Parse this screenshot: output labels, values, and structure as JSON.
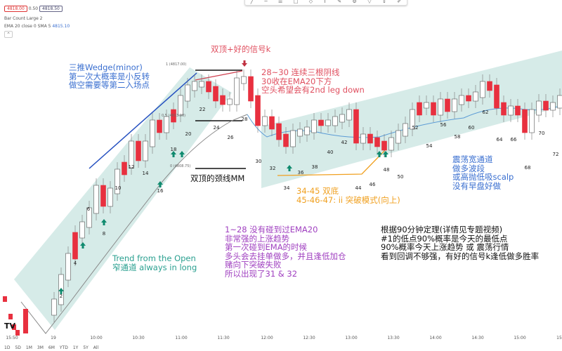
{
  "header": {
    "bid": "4818.00",
    "spread": "0.50",
    "ask": "4818.50",
    "bar_count": "Bar Count Large 2",
    "ema_label": "EMA 20 close 0 SMA 5",
    "ema_value": "4815.10",
    "collapse_icon": "chevron-up-icon"
  },
  "fib_levels": [
    "1 (4817.00)",
    "0.5 (4813.00)",
    "0 (4808.75)"
  ],
  "bar_numbers": [
    "2",
    "4",
    "6",
    "8",
    "10",
    "12",
    "14",
    "16",
    "18",
    "20",
    "22",
    "24",
    "26",
    "28",
    "30",
    "32",
    "34",
    "36",
    "38",
    "40",
    "42",
    "44",
    "46",
    "48",
    "50",
    "52",
    "54",
    "56",
    "58",
    "60",
    "62",
    "64",
    "66",
    "68",
    "70",
    "72"
  ],
  "annotations": {
    "wedge": [
      "三推Wedge(minor)",
      "第一次大概率是小反转",
      "做空需要等第二入场点"
    ],
    "double_top_signal": "双顶+好的信号k",
    "bars_28_30": [
      "28~30 连续三根阴线",
      "30收在EMA20下方",
      "空头希望会有2nd leg down"
    ],
    "neckline": "双顶的颈线MM",
    "double_bottom": [
      "34-45 双底",
      "45-46-47: ii 突破模式(向上)"
    ],
    "range_channel": [
      "震荡宽通道",
      "做多波段",
      "或高抛低吸scalp",
      "没有早盘好做"
    ],
    "trend_open": [
      "Trend from the Open",
      "窄通道 always in long"
    ],
    "bars_1_28": [
      "1~28 没有碰到过EMA20",
      "非常强的上涨趋势",
      "第一次碰到EMA的时候",
      "多头会去挂单做多，并且逢低加仓",
      "赌向下突破失败",
      "所以出现了31 & 32"
    ],
    "ninety_min": [
      "根据90分钟定理(详情见专题视频)",
      "#1的低点90%概率是今天的最低点",
      "90%概率今天上涨趋势 或 震荡行情",
      "看到回调不够强，有好的信号k逢低做多胜率"
    ]
  },
  "time_axis": [
    "15:50",
    "19",
    "10:00",
    "10:30",
    "11:00",
    "11:30",
    "12:00",
    "12:30",
    "13:00",
    "13:30",
    "14:00",
    "14:30",
    "15:00",
    "15"
  ],
  "ranges": [
    "1D",
    "5D",
    "1M",
    "3M",
    "6M",
    "YTD",
    "1Y",
    "5Y",
    "All"
  ],
  "logo": "TV",
  "colors": {
    "bull": "#ffffff",
    "bear": "#e8303f",
    "channel": "#cfe8e4",
    "ema": "#5b9bd5",
    "arrow_up": "#0f8a6e",
    "wedge_text": "#3a6fd0",
    "signal_text": "#e05060",
    "orange": "#f0a020",
    "purple": "#a040c0",
    "teal_text": "#2aa090"
  }
}
